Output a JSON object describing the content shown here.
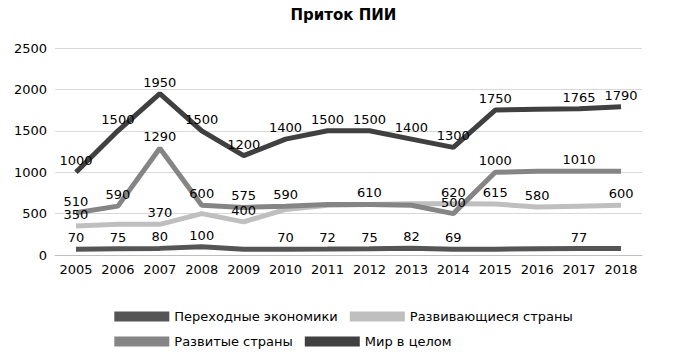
{
  "chart_data": {
    "type": "line",
    "title": "Приток ПИИ",
    "categories": [
      "2005",
      "2006",
      "2007",
      "2008",
      "2009",
      "2010",
      "2011",
      "2012",
      "2013",
      "2014",
      "2015",
      "2016",
      "2017",
      "2018"
    ],
    "series": [
      {
        "name": "Переходные экономики",
        "color": "#555555",
        "values": [
          70,
          75,
          80,
          100,
          70,
          70,
          72,
          75,
          82,
          69,
          70,
          74,
          77,
          78
        ],
        "value_labels": [
          "70",
          "75",
          "80",
          "100",
          null,
          "70",
          "72",
          "75",
          "82",
          "69",
          null,
          null,
          "77",
          null
        ]
      },
      {
        "name": "Развивающиеся страны",
        "color": "#bfbfbf",
        "values": [
          350,
          370,
          370,
          500,
          400,
          550,
          600,
          610,
          620,
          620,
          615,
          580,
          590,
          600
        ],
        "value_labels": [
          "350",
          null,
          "370",
          null,
          "400",
          null,
          null,
          null,
          null,
          "620",
          "615",
          "580",
          null,
          "600"
        ]
      },
      {
        "name": "Развитые страны",
        "color": "#858585",
        "values": [
          510,
          590,
          1290,
          600,
          575,
          590,
          610,
          610,
          600,
          500,
          1000,
          1010,
          1010,
          1010
        ],
        "value_labels": [
          "510",
          "590",
          "1290",
          "600",
          "575",
          "590",
          null,
          "610",
          null,
          "500",
          "1000",
          null,
          "1010",
          null
        ]
      },
      {
        "name": "Мир в целом",
        "color": "#404040",
        "values": [
          1000,
          1500,
          1950,
          1500,
          1200,
          1400,
          1500,
          1500,
          1400,
          1300,
          1750,
          1760,
          1765,
          1790
        ],
        "value_labels": [
          "1000",
          "1500",
          "1950",
          "1500",
          "1200",
          "1400",
          "1500",
          "1500",
          "1400",
          "1300",
          "1750",
          null,
          "1765",
          "1790"
        ]
      }
    ],
    "ylim": [
      0,
      2500
    ],
    "yticks": [
      0,
      500,
      1000,
      1500,
      2000,
      2500
    ],
    "grid": true,
    "legend": "bottom",
    "data_labels": true
  }
}
